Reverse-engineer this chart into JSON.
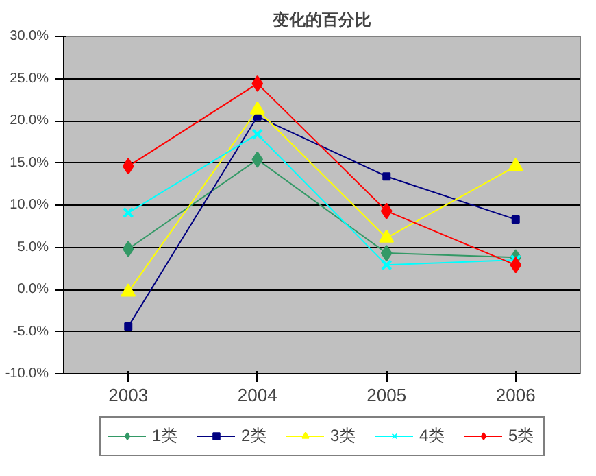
{
  "chart_data": {
    "type": "line",
    "title": "变化的百分比",
    "categories": [
      "2003",
      "2004",
      "2005",
      "2006"
    ],
    "series": [
      {
        "name": "1类",
        "color": "#339966",
        "marker": "diamond",
        "values": [
          4.8,
          15.4,
          4.3,
          3.8
        ]
      },
      {
        "name": "2类",
        "color": "#000080",
        "marker": "square",
        "values": [
          -4.4,
          20.5,
          13.4,
          8.3
        ]
      },
      {
        "name": "3类",
        "color": "#ffff00",
        "marker": "triangle",
        "values": [
          -0.3,
          21.3,
          6.1,
          14.6
        ]
      },
      {
        "name": "4类",
        "color": "#00ffff",
        "marker": "cross",
        "values": [
          9.1,
          18.4,
          2.9,
          3.5
        ]
      },
      {
        "name": "5类",
        "color": "#ff0000",
        "marker": "diamond",
        "values": [
          14.6,
          24.4,
          9.3,
          2.9
        ]
      }
    ],
    "ylim": [
      -10,
      30
    ],
    "yticks": [
      {
        "value": -10,
        "label": "-10.0%"
      },
      {
        "value": -5,
        "label": "-5.0%"
      },
      {
        "value": 0,
        "label": "0.0%"
      },
      {
        "value": 5,
        "label": "5.0%"
      },
      {
        "value": 10,
        "label": "10.0%"
      },
      {
        "value": 15,
        "label": "15.0%"
      },
      {
        "value": 20,
        "label": "20.0%"
      },
      {
        "value": 25,
        "label": "25.0%"
      },
      {
        "value": 30,
        "label": "30.0%"
      }
    ],
    "grid": "y",
    "legend": "bottom"
  }
}
